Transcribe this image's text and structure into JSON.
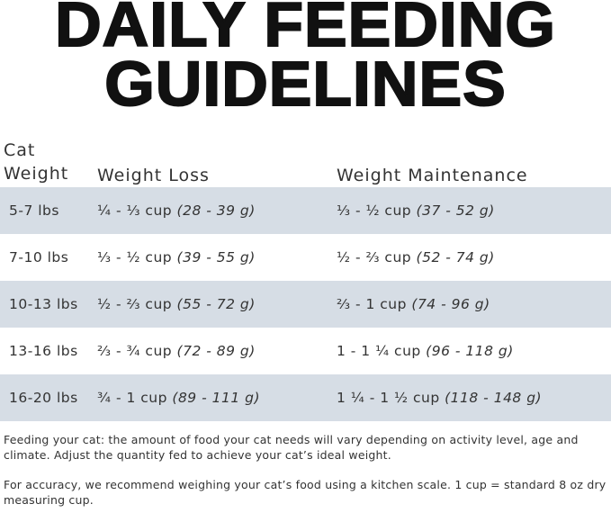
{
  "header": {
    "title_lines": [
      "DAILY FEEDING",
      "GUIDELINES"
    ]
  },
  "table": {
    "columns": [
      "Cat Weight",
      "Weight Loss",
      "Weight Maintenance"
    ],
    "rows": [
      [
        "5-7 lbs",
        {
          "cup": "¼ - ⅓ cup",
          "grams": "(28 - 39 g)"
        },
        {
          "cup": "⅓ - ½ cup",
          "grams": "(37 - 52 g)"
        }
      ],
      [
        "7-10 lbs",
        {
          "cup": "⅓ - ½ cup",
          "grams": "(39 - 55 g)"
        },
        {
          "cup": "½ - ⅔ cup",
          "grams": "(52 - 74 g)"
        }
      ],
      [
        "10-13 lbs",
        {
          "cup": "½ - ⅔ cup",
          "grams": "(55 - 72 g)"
        },
        {
          "cup": "⅔ - 1 cup",
          "grams": "(74 - 96 g)"
        }
      ],
      [
        "13-16 lbs",
        {
          "cup": "⅔ - ¾ cup",
          "grams": "(72 - 89 g)"
        },
        {
          "cup": "1 - 1 ¼ cup",
          "grams": "(96 - 118 g)"
        }
      ],
      [
        "16-20 lbs",
        {
          "cup": "¾ - 1 cup",
          "grams": "(89 - 111 g)"
        },
        {
          "cup": "1 ¼ - 1 ½ cup",
          "grams": "(118 - 148 g)"
        }
      ]
    ]
  },
  "notes": [
    "Feeding your cat: the amount of food your cat needs will vary depending on activity level, age and climate. Adjust the quantity fed to achieve your cat’s ideal weight.",
    "For accuracy, we recommend weighing your cat’s food using a kitchen scale. 1 cup = standard 8 oz dry measuring cup."
  ]
}
